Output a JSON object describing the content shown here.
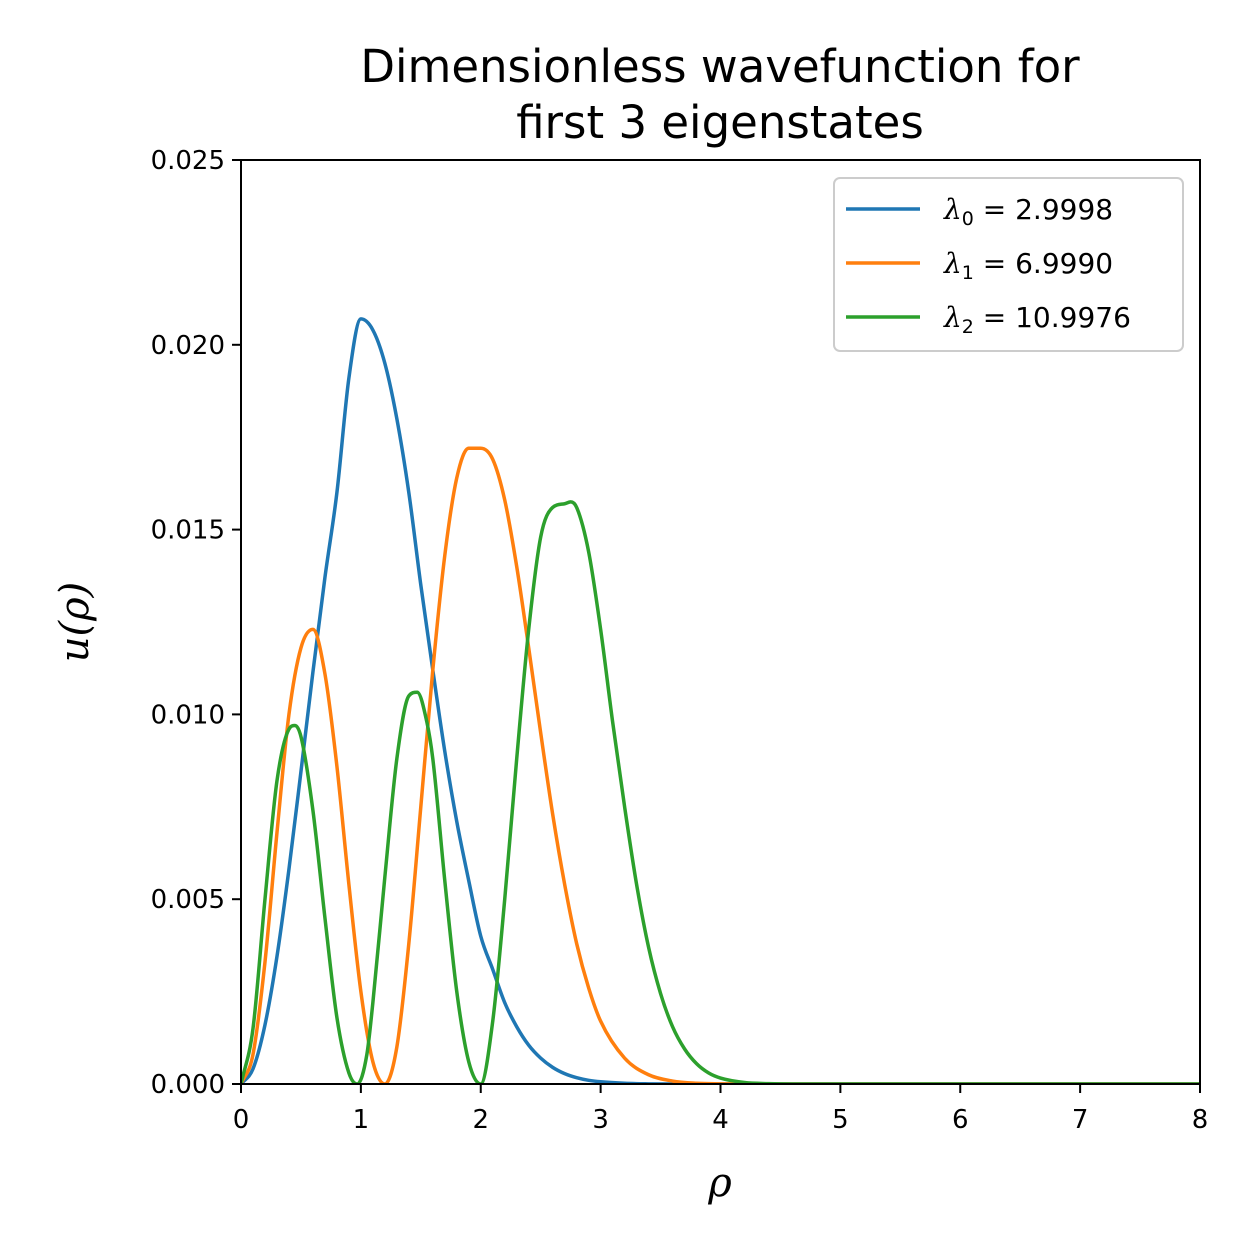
{
  "chart_data": {
    "type": "line",
    "title_lines": [
      "Dimensionless wavefunction for",
      "first 3 eigenstates"
    ],
    "xlabel": "ρ",
    "ylabel": "u(ρ)",
    "xlim": [
      0,
      8
    ],
    "ylim": [
      0,
      0.025
    ],
    "xticks": [
      0,
      1,
      2,
      3,
      4,
      5,
      6,
      7,
      8
    ],
    "xtick_labels": [
      "0",
      "1",
      "2",
      "3",
      "4",
      "5",
      "6",
      "7",
      "8"
    ],
    "yticks": [
      0,
      0.005,
      0.01,
      0.015,
      0.02,
      0.025
    ],
    "ytick_labels": [
      "0.000",
      "0.005",
      "0.010",
      "0.015",
      "0.020",
      "0.025"
    ],
    "grid": false,
    "legend_position": "top-right",
    "series": [
      {
        "name": "λ0 = 2.9998",
        "legend": {
          "symbol": "λ",
          "sub": "0",
          "rest": " = 2.9998"
        },
        "color": "#1f77b4",
        "x": [
          0,
          0.1,
          0.2,
          0.3,
          0.4,
          0.5,
          0.6,
          0.7,
          0.8,
          0.9,
          1.0,
          1.1,
          1.2,
          1.3,
          1.4,
          1.5,
          1.6,
          1.7,
          1.8,
          1.9,
          2.0,
          2.1,
          2.2,
          2.3,
          2.4,
          2.5,
          2.6,
          2.7,
          2.8,
          2.9,
          3.0,
          3.2,
          3.4,
          3.6,
          3.8,
          4.0,
          4.5,
          5.0,
          6.0,
          7.0,
          8.0
        ],
        "y": [
          0,
          0.00041,
          0.0016,
          0.00345,
          0.00581,
          0.00845,
          0.01115,
          0.0137,
          0.016,
          0.0191,
          0.0207,
          0.0204,
          0.0195,
          0.018,
          0.016,
          0.0135,
          0.0112,
          0.009,
          0.0071,
          0.0055,
          0.004,
          0.0031,
          0.0022,
          0.00155,
          0.00105,
          0.0007,
          0.00045,
          0.00028,
          0.00017,
          0.0001,
          6e-05,
          2e-05,
          5e-06,
          0,
          0,
          0,
          0,
          0,
          0,
          0,
          0
        ]
      },
      {
        "name": "λ1 = 6.9990",
        "legend": {
          "symbol": "λ",
          "sub": "1",
          "rest": " = 6.9990"
        },
        "color": "#ff7f0e",
        "x": [
          0,
          0.1,
          0.2,
          0.3,
          0.4,
          0.5,
          0.6,
          0.7,
          0.8,
          0.9,
          1.0,
          1.1,
          1.2,
          1.3,
          1.4,
          1.5,
          1.6,
          1.7,
          1.8,
          1.9,
          2.0,
          2.1,
          2.2,
          2.3,
          2.4,
          2.5,
          2.6,
          2.7,
          2.8,
          2.9,
          3.0,
          3.2,
          3.4,
          3.6,
          3.8,
          4.0,
          4.2,
          4.5,
          5.0,
          6.0,
          8.0
        ],
        "y": [
          0,
          0.0008,
          0.0033,
          0.0068,
          0.01,
          0.0118,
          0.0123,
          0.0111,
          0.0086,
          0.0054,
          0.0025,
          0.0006,
          0.0,
          0.001,
          0.0038,
          0.0075,
          0.0112,
          0.0143,
          0.0164,
          0.0172,
          0.0172,
          0.0169,
          0.0158,
          0.014,
          0.0118,
          0.0095,
          0.0073,
          0.0054,
          0.0038,
          0.0026,
          0.0017,
          0.0007,
          0.00025,
          8e-05,
          2e-05,
          5e-06,
          0,
          0,
          0,
          0,
          0
        ]
      },
      {
        "name": "λ2 = 10.9976",
        "legend": {
          "symbol": "λ",
          "sub": "2",
          "rest": " = 10.9976"
        },
        "color": "#2ca02c",
        "x": [
          0,
          0.1,
          0.2,
          0.3,
          0.4,
          0.45,
          0.5,
          0.6,
          0.7,
          0.8,
          0.9,
          0.97,
          1.05,
          1.1,
          1.2,
          1.3,
          1.4,
          1.47,
          1.55,
          1.6,
          1.7,
          1.8,
          1.9,
          2.0,
          2.1,
          2.2,
          2.3,
          2.4,
          2.5,
          2.6,
          2.7,
          2.75,
          2.8,
          2.9,
          3.0,
          3.1,
          3.2,
          3.3,
          3.4,
          3.5,
          3.6,
          3.7,
          3.8,
          3.9,
          4.0,
          4.2,
          4.4,
          4.6,
          5.0,
          6.0,
          8.0
        ],
        "y": [
          0,
          0.0015,
          0.005,
          0.0082,
          0.0096,
          0.0097,
          0.0094,
          0.0074,
          0.0045,
          0.0018,
          0.0003,
          0.0,
          0.0008,
          0.0022,
          0.0056,
          0.0088,
          0.0105,
          0.0106,
          0.0098,
          0.0088,
          0.0055,
          0.0025,
          0.0006,
          0.0,
          0.0017,
          0.005,
          0.0088,
          0.0123,
          0.0148,
          0.0156,
          0.0157,
          0.01575,
          0.0156,
          0.0144,
          0.0123,
          0.0098,
          0.0075,
          0.0054,
          0.0037,
          0.00245,
          0.00155,
          0.00095,
          0.00055,
          0.0003,
          0.00016,
          4e-05,
          1e-05,
          0,
          0,
          0,
          0
        ]
      }
    ]
  }
}
